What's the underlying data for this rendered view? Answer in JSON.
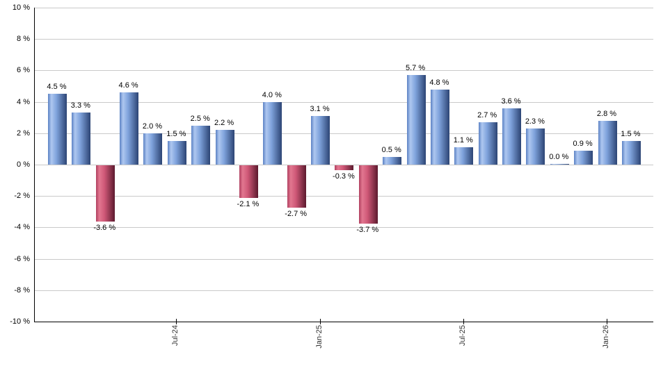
{
  "chart_data": {
    "type": "bar",
    "title": "",
    "xlabel": "",
    "ylabel": "",
    "ylim": [
      -10,
      10
    ],
    "ytick_step": 2,
    "grid": true,
    "legend_position": "none",
    "y_ticks": [
      "10 %",
      "8 %",
      "6 %",
      "4 %",
      "2 %",
      "0 %",
      "-2 %",
      "-4 %",
      "-6 %",
      "-8 %",
      "-10 %"
    ],
    "values": [
      4.5,
      3.3,
      -3.6,
      4.6,
      2.0,
      1.5,
      2.5,
      2.2,
      -2.1,
      4.0,
      -2.7,
      3.1,
      -0.3,
      -3.7,
      0.5,
      5.7,
      4.8,
      1.1,
      2.7,
      3.6,
      2.3,
      0.0,
      0.9,
      2.8,
      1.5
    ],
    "bar_labels": [
      "4.5 %",
      "3.3 %",
      "-3.6 %",
      "4.6 %",
      "2.0 %",
      "1.5 %",
      "2.5 %",
      "2.2 %",
      "-2.1 %",
      "4.0 %",
      "-2.7 %",
      "3.1 %",
      "-0.3 %",
      "-3.7 %",
      "0.5 %",
      "5.7 %",
      "4.8 %",
      "1.1 %",
      "2.7 %",
      "3.6 %",
      "2.3 %",
      "0.0 %",
      "0.9 %",
      "2.8 %",
      "1.5 %"
    ],
    "x_ticks": [
      {
        "bar_index": 5,
        "label": "Jul-24"
      },
      {
        "bar_index": 11,
        "label": "Jan-25"
      },
      {
        "bar_index": 17,
        "label": "Jul-25"
      },
      {
        "bar_index": 23,
        "label": "Jan-26"
      }
    ],
    "colors": {
      "positive_bar_light": "#aec7f0",
      "positive_bar_dark": "#2c4474",
      "negative_bar_light": "#e27790",
      "negative_bar_dark": "#5c1a2e",
      "gridline": "#c9c9c9",
      "axis": "#000000",
      "value_label_text": "#000000",
      "tick_label_text": "#333333"
    }
  }
}
